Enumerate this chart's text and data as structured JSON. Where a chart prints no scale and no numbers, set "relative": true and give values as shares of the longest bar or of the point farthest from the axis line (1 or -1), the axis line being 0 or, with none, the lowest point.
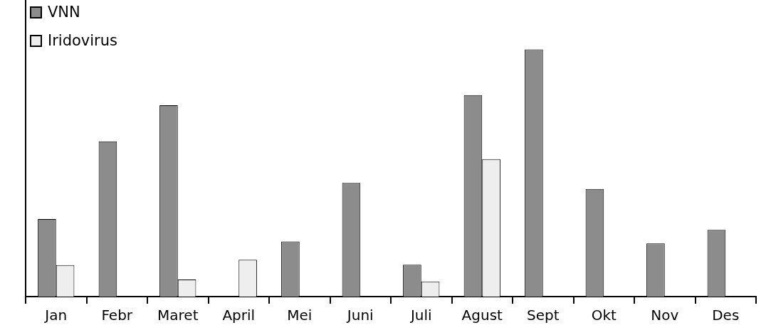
{
  "chart_data": {
    "type": "bar",
    "relative": true,
    "legend": "top left",
    "categories": [
      "Jan",
      "Febr",
      "Maret",
      "April",
      "Mei",
      "Juni",
      "Juli",
      "Agust",
      "Sept",
      "Okt",
      "Nov",
      "Des"
    ],
    "series": [
      {
        "name": "VNN",
        "color": "#8c8c8c",
        "values": [
          0.314,
          0.628,
          0.774,
          null,
          0.223,
          0.46,
          0.129,
          0.815,
          1,
          0.435,
          0.215,
          0.27
        ]
      },
      {
        "name": "Iridovirus",
        "color": "#eeeeee",
        "values": [
          0.127,
          null,
          0.069,
          0.149,
          null,
          null,
          0.061,
          0.556,
          null,
          null,
          null,
          null
        ]
      }
    ]
  }
}
